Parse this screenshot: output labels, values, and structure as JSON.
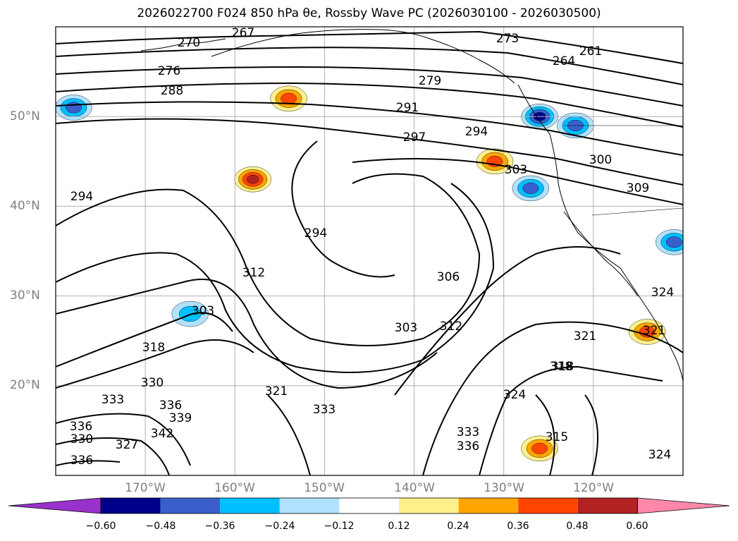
{
  "title": "2026022700 F024 850 hPa θe, Rossby Wave PC (2026030100 - 2026030500)",
  "chart_data": {
    "type": "map",
    "projection": "lat-lon",
    "extent": {
      "lon": [
        -180,
        -110
      ],
      "lat": [
        10,
        60
      ]
    },
    "variable_contours": "850 hPa equivalent potential temperature (K)",
    "variable_shaded": "Rossby Wave PC",
    "lat_ticks": [
      "20°N",
      "30°N",
      "40°N",
      "50°N"
    ],
    "lon_ticks": [
      "170°W",
      "160°W",
      "150°W",
      "140°W",
      "130°W",
      "120°W"
    ],
    "contour_labels": [
      "270",
      "267",
      "276",
      "288",
      "279",
      "273",
      "264",
      "261",
      "291",
      "297",
      "294",
      "300",
      "303",
      "294",
      "309",
      "294",
      "312",
      "306",
      "303",
      "303",
      "318",
      "312",
      "321",
      "318",
      "330",
      "333",
      "321",
      "333",
      "336",
      "339",
      "342",
      "336",
      "330",
      "336",
      "327",
      "324",
      "333",
      "336",
      "315",
      "318",
      "324",
      "321",
      "324"
    ],
    "colorbar": {
      "ticks": [
        "−0.60",
        "−0.48",
        "−0.36",
        "−0.24",
        "−0.12",
        "0.12",
        "0.24",
        "0.36",
        "0.48",
        "0.60"
      ],
      "colors": [
        "#9932cc",
        "#00008b",
        "#3a5fcd",
        "#00bfff",
        "#b0e2ff",
        "#ffffff",
        "#fff08c",
        "#ffa500",
        "#ff4500",
        "#b22222",
        "#ff88aa"
      ],
      "extend": "both"
    },
    "anomalies": [
      {
        "sign": "negative",
        "lon": -126,
        "lat": 50,
        "magnitude": 0.48
      },
      {
        "sign": "negative",
        "lon": -122,
        "lat": 49,
        "magnitude": 0.4
      },
      {
        "sign": "negative",
        "lon": -127,
        "lat": 42,
        "magnitude": 0.4
      },
      {
        "sign": "negative",
        "lon": -111,
        "lat": 36,
        "magnitude": 0.36
      },
      {
        "sign": "negative",
        "lon": -178,
        "lat": 51,
        "magnitude": 0.3
      },
      {
        "sign": "negative",
        "lon": -165,
        "lat": 28,
        "magnitude": 0.24
      },
      {
        "sign": "positive",
        "lon": -158,
        "lat": 43,
        "magnitude": 0.48
      },
      {
        "sign": "positive",
        "lon": -154,
        "lat": 52,
        "magnitude": 0.36
      },
      {
        "sign": "positive",
        "lon": -131,
        "lat": 45,
        "magnitude": 0.36
      },
      {
        "sign": "positive",
        "lon": -114,
        "lat": 26,
        "magnitude": 0.36
      },
      {
        "sign": "positive",
        "lon": -126,
        "lat": 13,
        "magnitude": 0.36
      }
    ]
  }
}
